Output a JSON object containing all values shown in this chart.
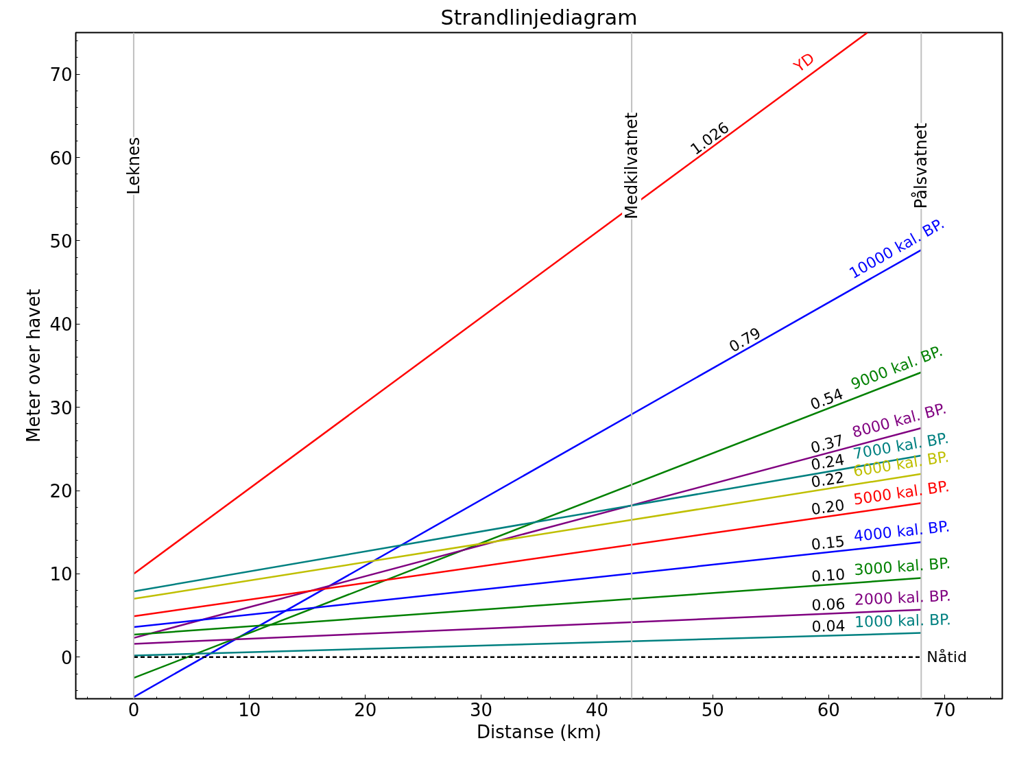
{
  "chart_data": {
    "type": "line",
    "title": "Strandlinjediagram",
    "xlabel": "Distanse (km)",
    "ylabel": "Meter over havet",
    "xlim": [
      -5,
      75
    ],
    "ylim": [
      -5,
      75
    ],
    "xticks": [
      0,
      10,
      20,
      30,
      40,
      50,
      60,
      70
    ],
    "yticks": [
      0,
      10,
      20,
      30,
      40,
      50,
      60,
      70
    ],
    "grid": false,
    "marker": "none",
    "series": [
      {
        "name": "YD",
        "color": "#ff0000",
        "x": [
          0,
          63.35
        ],
        "values": [
          10,
          75
        ]
      },
      {
        "name": "10000 kal. BP.",
        "color": "#0000ff",
        "x": [
          0,
          68
        ],
        "values": [
          -4.8,
          48.9
        ]
      },
      {
        "name": "9000 kal. BP.",
        "color": "#008000",
        "x": [
          0,
          68
        ],
        "values": [
          -2.5,
          34.2
        ]
      },
      {
        "name": "8000 kal. BP.",
        "color": "#800080",
        "x": [
          0,
          68
        ],
        "values": [
          2.3,
          27.5
        ]
      },
      {
        "name": "7000 kal. BP.",
        "color": "#008080",
        "x": [
          0,
          68
        ],
        "values": [
          7.9,
          24.2
        ]
      },
      {
        "name": "6000 kal. BP.",
        "color": "#bfbf00",
        "x": [
          0,
          68
        ],
        "values": [
          7.0,
          22.0
        ]
      },
      {
        "name": "5000 kal. BP.",
        "color": "#ff0000",
        "x": [
          0,
          68
        ],
        "values": [
          4.9,
          18.5
        ]
      },
      {
        "name": "4000 kal. BP.",
        "color": "#0000ff",
        "x": [
          0,
          68
        ],
        "values": [
          3.6,
          13.8
        ]
      },
      {
        "name": "3000 kal. BP.",
        "color": "#008000",
        "x": [
          0,
          68
        ],
        "values": [
          2.7,
          9.5
        ]
      },
      {
        "name": "2000 kal. BP.",
        "color": "#800080",
        "x": [
          0,
          68
        ],
        "values": [
          1.6,
          5.7
        ]
      },
      {
        "name": "1000 kal. BP.",
        "color": "#008080",
        "x": [
          0,
          68
        ],
        "values": [
          0.2,
          2.9
        ]
      },
      {
        "name": "Nåtid",
        "color": "#000000",
        "x": [
          0,
          68
        ],
        "values": [
          0,
          0
        ],
        "line_style": "dashed"
      }
    ],
    "ref_lines": [
      {
        "axis": "x",
        "value": 0,
        "label": "Leknes",
        "color": "#c0c0c0"
      },
      {
        "axis": "x",
        "value": 43,
        "label": "Medkilvatnet",
        "color": "#c0c0c0"
      },
      {
        "axis": "x",
        "value": 68,
        "label": "Pålsvatnet",
        "color": "#c0c0c0"
      }
    ],
    "annotations": [
      {
        "text": "1.026",
        "x": 50,
        "y": 61.3
      },
      {
        "text": "0.79",
        "x": 53,
        "y": 37.07
      },
      {
        "text": "0.54",
        "x": 60,
        "y": 29.9
      },
      {
        "text": "0.37",
        "x": 60,
        "y": 24.5
      },
      {
        "text": "0.24",
        "x": 60,
        "y": 22.3
      },
      {
        "text": "0.22",
        "x": 60,
        "y": 20.2
      },
      {
        "text": "0.20",
        "x": 60,
        "y": 16.9
      },
      {
        "text": "0.15",
        "x": 60,
        "y": 12.6
      },
      {
        "text": "0.10",
        "x": 60,
        "y": 8.7
      },
      {
        "text": "0.06",
        "x": 60,
        "y": 5.2
      },
      {
        "text": "0.04",
        "x": 60,
        "y": 2.6
      }
    ]
  }
}
